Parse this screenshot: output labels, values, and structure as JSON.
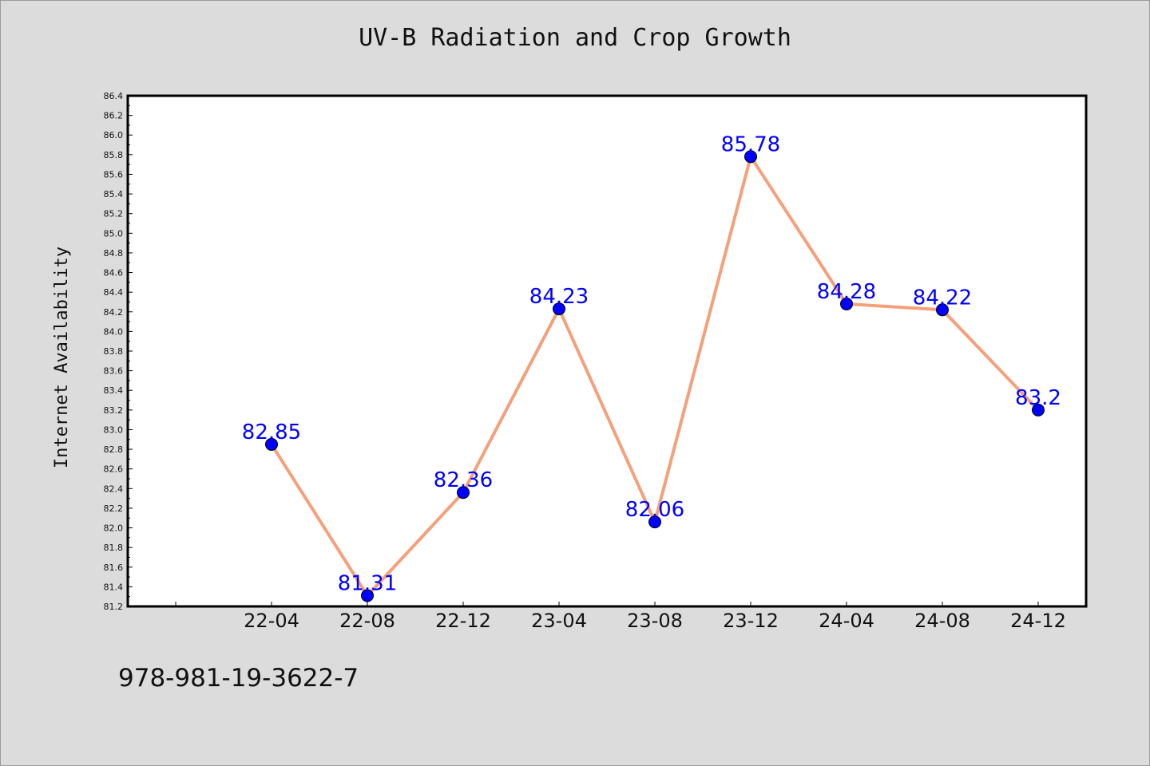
{
  "chart_data": {
    "type": "line",
    "title": "UV-B Radiation and Crop Growth",
    "xlabel": "",
    "ylabel": "Internet Availability",
    "categories": [
      "22-04",
      "22-08",
      "22-12",
      "23-04",
      "23-08",
      "23-12",
      "24-04",
      "24-08",
      "24-12"
    ],
    "series": [
      {
        "values": [
          82.85,
          81.31,
          82.36,
          84.23,
          82.06,
          85.78,
          84.28,
          84.22,
          83.2
        ],
        "labels": [
          "82.85",
          "81.31",
          "82.36",
          "84.23",
          "82.06",
          "85.78",
          "84.28",
          "84.22",
          "83.2"
        ],
        "line_color": "#f4a07a",
        "marker_color": "#0000ff"
      }
    ],
    "ylim": [
      81.2,
      86.4
    ],
    "yticks": [
      "81.2",
      "81.4",
      "81.6",
      "81.8",
      "82.0",
      "82.2",
      "82.4",
      "82.6",
      "82.8",
      "83.0",
      "83.2",
      "83.4",
      "83.6",
      "83.8",
      "84.0",
      "84.2",
      "84.4",
      "84.6",
      "84.8",
      "85.0",
      "85.2",
      "85.4",
      "85.6",
      "85.8",
      "86.0",
      "86.2",
      "86.4"
    ],
    "grid": false,
    "legend": "none"
  },
  "footer": {
    "code": "978-981-19-3622-7"
  }
}
